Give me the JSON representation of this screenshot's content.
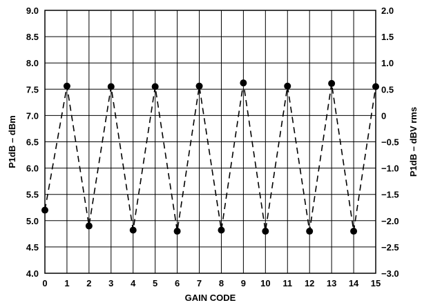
{
  "chart_data": {
    "type": "line",
    "title": "",
    "xlabel": "GAIN CODE",
    "ylabel": "P1dB – dBm",
    "ylabel_right": "P1dB – dBV rms",
    "xlim": [
      0,
      15
    ],
    "ylim": [
      4.0,
      9.0
    ],
    "ylim_right": [
      -3.0,
      2.0
    ],
    "x_ticks": [
      "0",
      "1",
      "2",
      "3",
      "4",
      "5",
      "6",
      "7",
      "8",
      "9",
      "10",
      "11",
      "12",
      "13",
      "14",
      "15"
    ],
    "y_ticks": [
      "4.0",
      "4.5",
      "5.0",
      "5.5",
      "6.0",
      "6.5",
      "7.0",
      "7.5",
      "8.0",
      "8.5",
      "9.0"
    ],
    "y_ticks_right": [
      "−3.0",
      "−2.5",
      "−2.0",
      "−1.5",
      "−1.0",
      "−0.5",
      "0",
      "0.5",
      "1.0",
      "1.5",
      "2.0"
    ],
    "grid": true,
    "series": [
      {
        "line_style": "dashed",
        "marker": "filled-circle",
        "color": "#000000",
        "x": [
          0,
          1,
          2,
          3,
          4,
          5,
          6,
          7,
          8,
          9,
          10,
          11,
          12,
          13,
          14,
          15
        ],
        "y": [
          5.2,
          7.56,
          4.9,
          7.55,
          4.82,
          7.55,
          4.8,
          7.56,
          4.82,
          7.62,
          4.8,
          7.56,
          4.8,
          7.61,
          4.8,
          7.55
        ]
      }
    ]
  }
}
